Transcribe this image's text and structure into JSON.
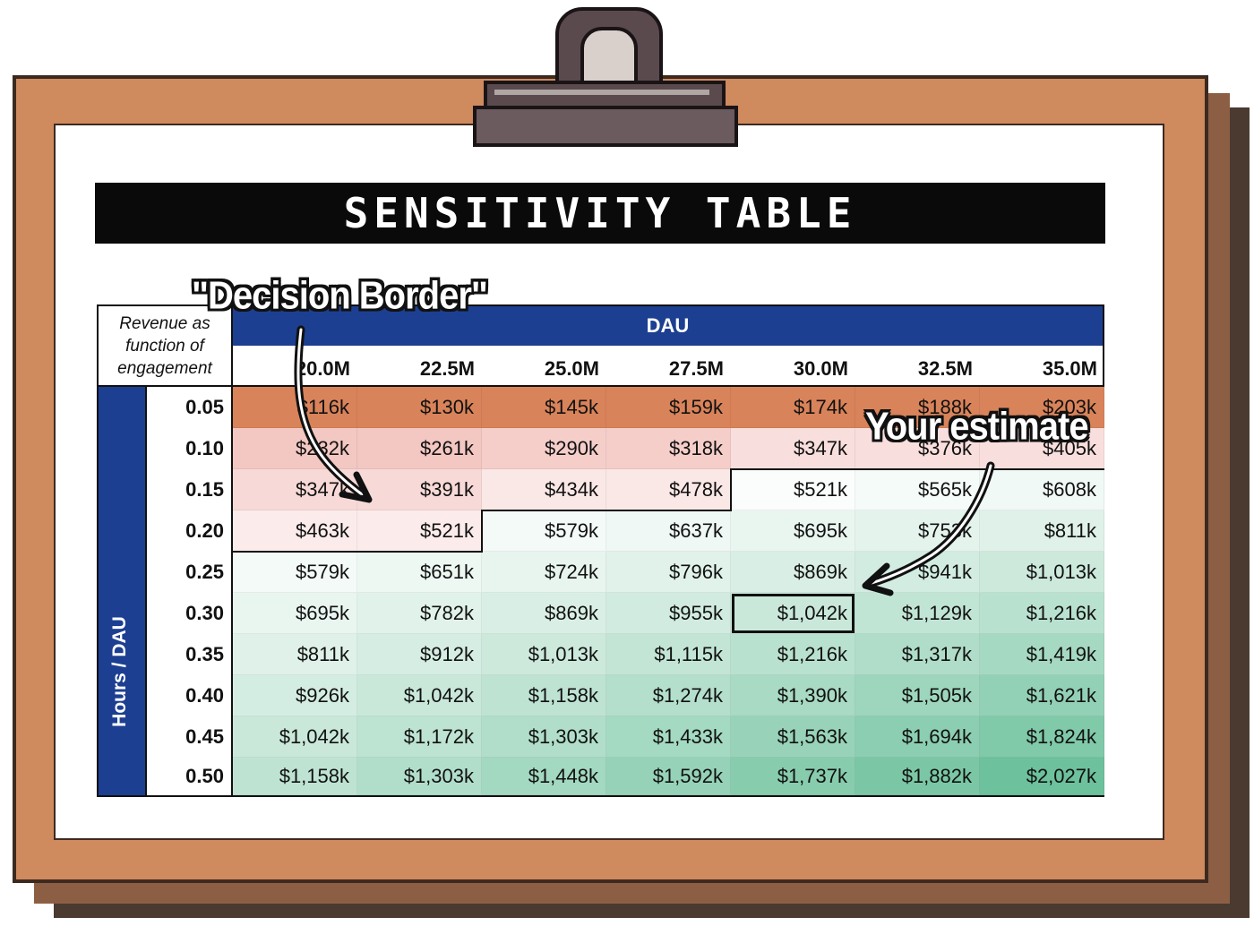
{
  "title": "SENSITIVITY TABLE",
  "corner_label": [
    "Revenue as",
    "function of",
    "engagement"
  ],
  "column_group_label": "DAU",
  "row_group_label": "Hours / DAU",
  "columns": [
    "20.0M",
    "22.5M",
    "25.0M",
    "27.5M",
    "30.0M",
    "32.5M",
    "35.0M"
  ],
  "rows": [
    "0.05",
    "0.10",
    "0.15",
    "0.20",
    "0.25",
    "0.30",
    "0.35",
    "0.40",
    "0.45",
    "0.50"
  ],
  "cells": [
    [
      "$116k",
      "$130k",
      "$145k",
      "$159k",
      "$174k",
      "$188k",
      "$203k"
    ],
    [
      "$232k",
      "$261k",
      "$290k",
      "$318k",
      "$347k",
      "$376k",
      "$405k"
    ],
    [
      "$347k",
      "$391k",
      "$434k",
      "$478k",
      "$521k",
      "$565k",
      "$608k"
    ],
    [
      "$463k",
      "$521k",
      "$579k",
      "$637k",
      "$695k",
      "$753k",
      "$811k"
    ],
    [
      "$579k",
      "$651k",
      "$724k",
      "$796k",
      "$869k",
      "$941k",
      "$1,013k"
    ],
    [
      "$695k",
      "$782k",
      "$869k",
      "$955k",
      "$1,042k",
      "$1,129k",
      "$1,216k"
    ],
    [
      "$811k",
      "$912k",
      "$1,013k",
      "$1,115k",
      "$1,216k",
      "$1,317k",
      "$1,419k"
    ],
    [
      "$926k",
      "$1,042k",
      "$1,158k",
      "$1,274k",
      "$1,390k",
      "$1,505k",
      "$1,621k"
    ],
    [
      "$1,042k",
      "$1,172k",
      "$1,303k",
      "$1,433k",
      "$1,563k",
      "$1,694k",
      "$1,824k"
    ],
    [
      "$1,158k",
      "$1,303k",
      "$1,448k",
      "$1,592k",
      "$1,737k",
      "$1,882k",
      "$2,027k"
    ]
  ],
  "estimate": {
    "row": 5,
    "col": 4
  },
  "decision_border_rows": [
    3,
    3,
    2,
    2,
    1,
    1,
    1
  ],
  "callouts": {
    "decision_border": "\"Decision Border\"",
    "your_estimate": "Your estimate"
  },
  "colors": {
    "band_blue": "#1c3f91",
    "low_orange": "#d9835a",
    "low_pink": "#efb4ae",
    "high_green": "#6dc19c",
    "board": "#cf8a5e"
  }
}
